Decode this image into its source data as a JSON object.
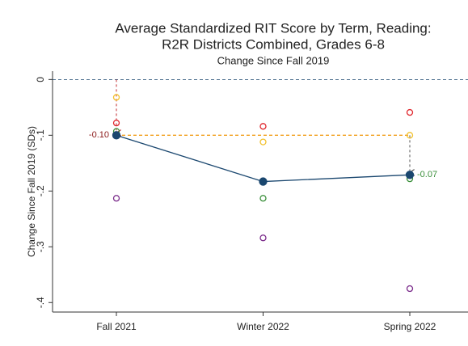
{
  "chart_data": {
    "type": "line",
    "title": [
      "Average Standardized RIT Score by Term, Reading:",
      "R2R Districts Combined, Grades 6-8"
    ],
    "subtitle": "Change Since Fall 2019",
    "y_label": "Change Since Fall 2019 (SDs)",
    "categories": [
      "Fall 2021",
      "Winter 2022",
      "Spring 2022"
    ],
    "series": [
      {
        "color": "#1a476f",
        "marker": "filled",
        "values": [
          -0.1,
          -0.183,
          -0.171
        ]
      },
      {
        "color": "#e0282e",
        "marker": "hollow",
        "values": [
          -0.078,
          -0.084,
          -0.059
        ]
      },
      {
        "color": "#f2c12e",
        "marker": "hollow",
        "values": [
          -0.032,
          -0.112,
          -0.1
        ]
      },
      {
        "color": "#3a8f3a",
        "marker": "hollow",
        "values": [
          -0.093,
          -0.213,
          -0.178
        ]
      },
      {
        "color": "#7a2a8a",
        "marker": "hollow",
        "values": [
          -0.213,
          -0.284,
          -0.375
        ]
      }
    ],
    "annotations": [
      {
        "text": "-0.10",
        "color": "#8b1a1a"
      },
      {
        "text": "-0.07",
        "color": "#3a8f3a"
      }
    ],
    "ylim": [
      -0.417,
      0.015
    ],
    "yticks": [
      0,
      {
        "value": -0.1,
        "label": "-.1"
      },
      {
        "value": -0.2,
        "label": "-.2"
      },
      {
        "value": -0.3,
        "label": "-.3"
      },
      {
        "value": -0.4,
        "label": "-.4"
      }
    ]
  }
}
